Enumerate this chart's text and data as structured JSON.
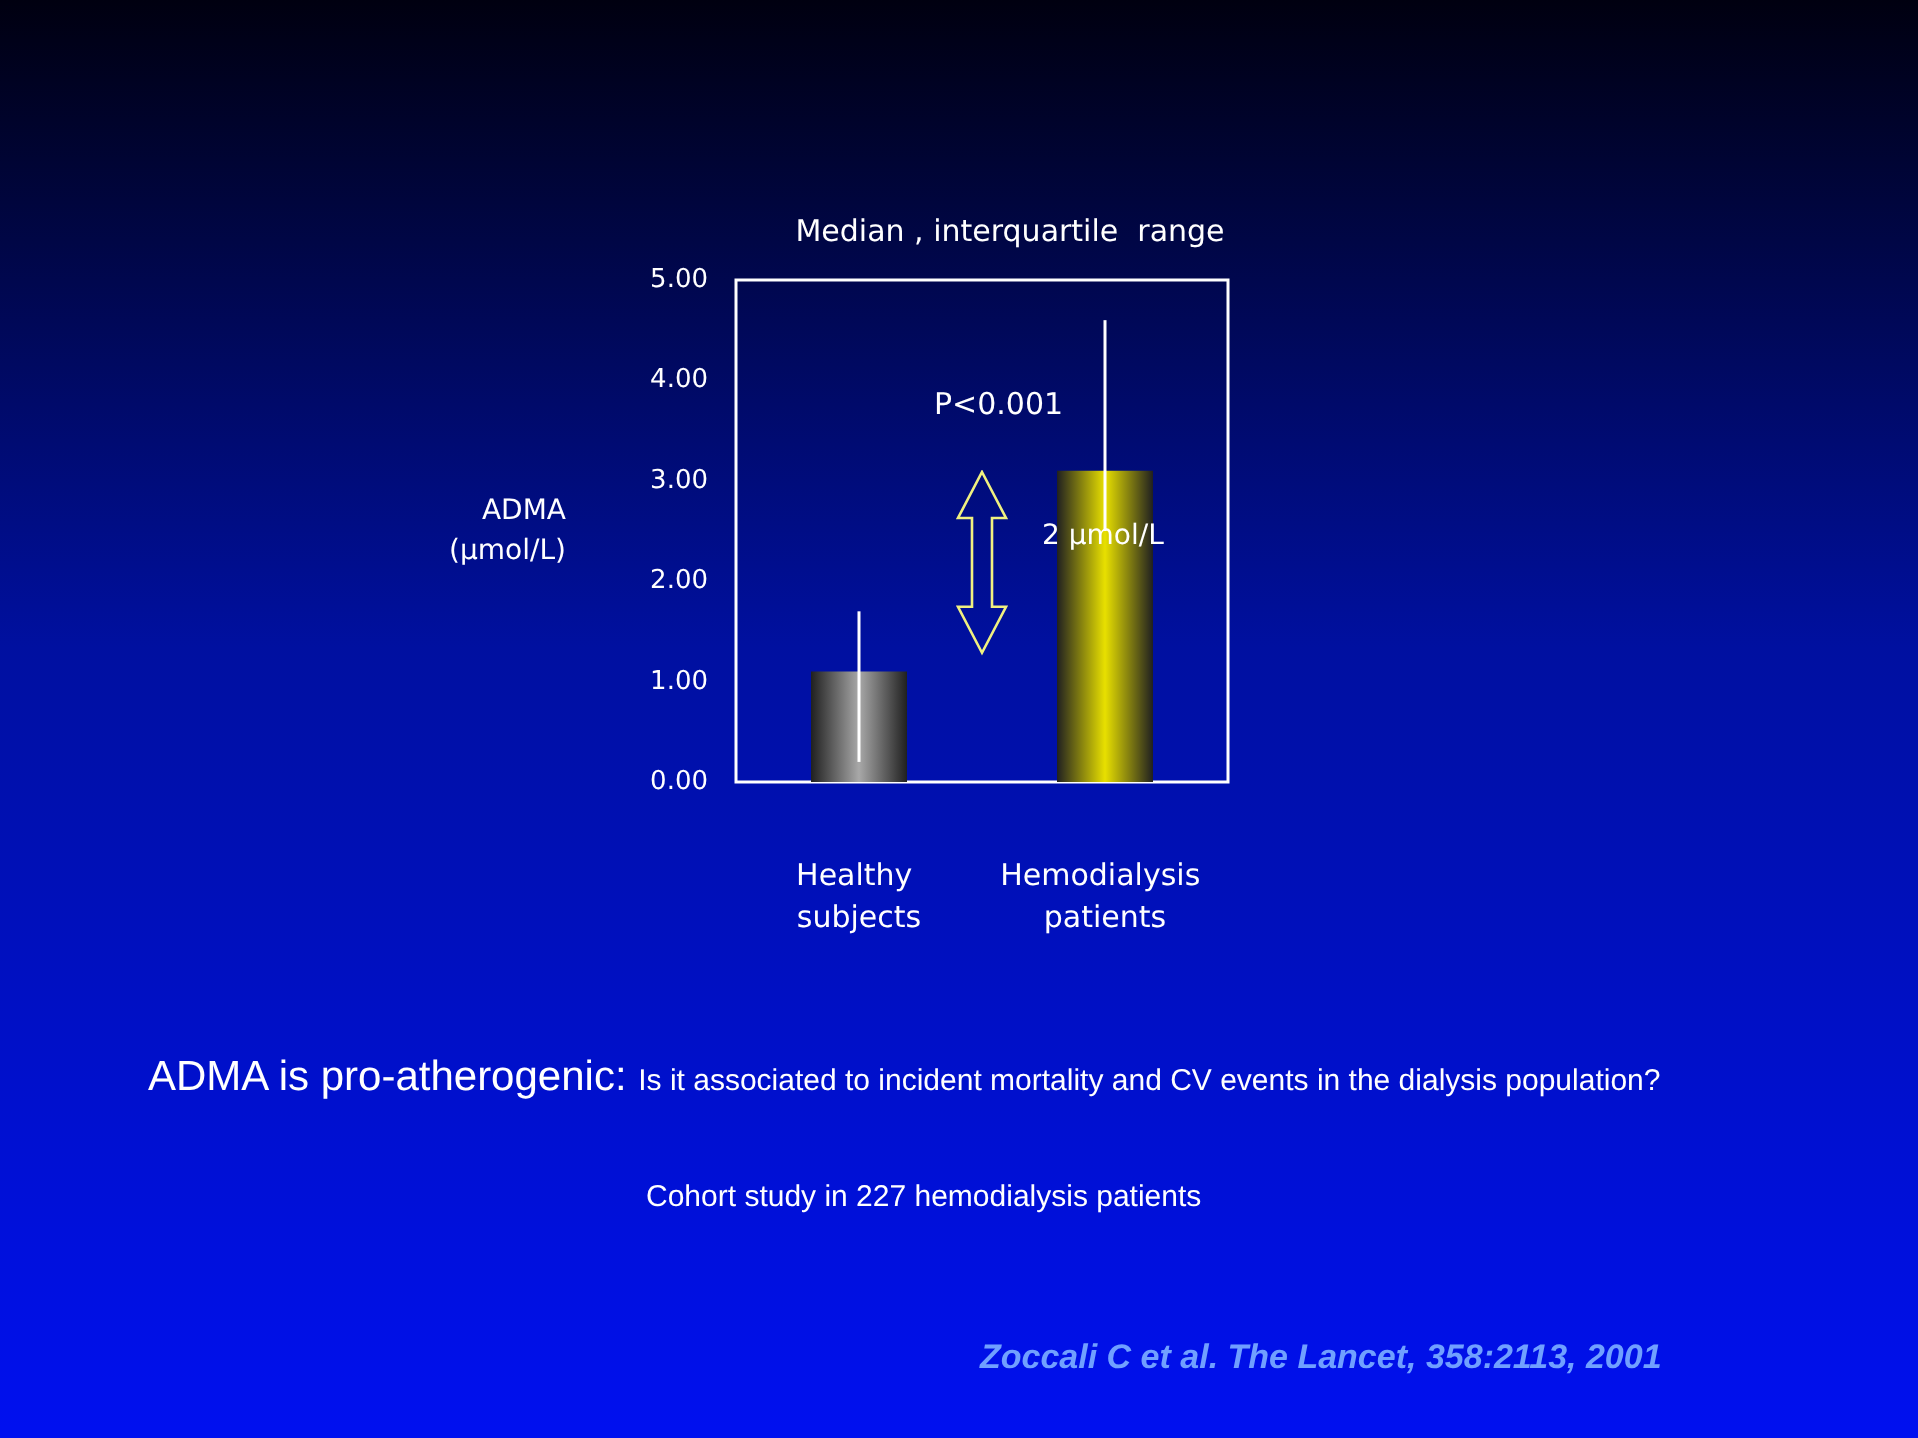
{
  "chart_data": {
    "type": "bar",
    "title": "Median , interquartile  range",
    "ylabel": "ADMA\n(µmol/L)",
    "categories": [
      "Healthy subjects",
      "Hemodialysis patients"
    ],
    "values": [
      1.1,
      3.1
    ],
    "colors": [
      "#a8a8a8",
      "#e8e000"
    ],
    "errors": [
      [
        0.2,
        1.7
      ],
      [
        2.5,
        4.6
      ]
    ],
    "ylim": [
      0,
      5
    ],
    "yticks": [
      {
        "value": 0,
        "label": "0.00"
      },
      {
        "value": 1,
        "label": "1.00"
      },
      {
        "value": 2,
        "label": "2.00"
      },
      {
        "value": 3,
        "label": "3.00"
      },
      {
        "value": 4,
        "label": "4.00"
      },
      {
        "value": 5,
        "label": "5.00"
      }
    ],
    "grid": false,
    "annotations": [
      "P<0.001",
      "2 µmol/L",
      "ADMA is pro-atherogenic:",
      "Is it associated to incident mortality and CV events in the  dialysis population?",
      "Cohort study in 227 hemodialysis patients",
      "Zoccali C et al. The Lancet, 358:2113,  2001"
    ]
  }
}
